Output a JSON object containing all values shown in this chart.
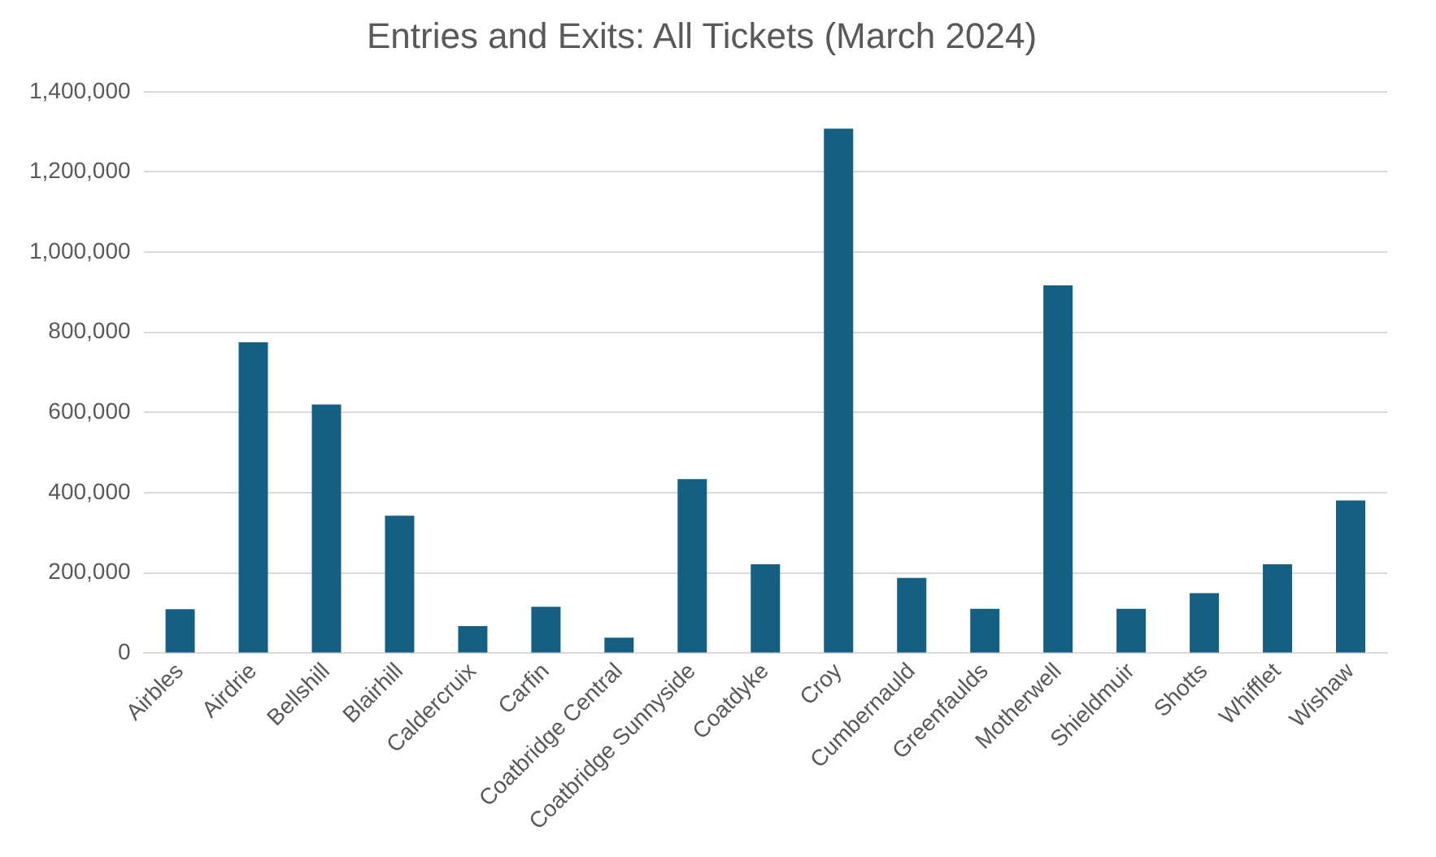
{
  "chart_data": {
    "type": "bar",
    "title": "Entries and Exits: All Tickets (March 2024)",
    "categories": [
      "Airbles",
      "Airdrie",
      "Bellshill",
      "Blairhill",
      "Caldercruix",
      "Carfin",
      "Coatbridge Central",
      "Coatbridge Sunnyside",
      "Coatdyke",
      "Croy",
      "Cumbernauld",
      "Greenfaulds",
      "Motherwell",
      "Shieldmuir",
      "Shotts",
      "Whifflet",
      "Wishaw"
    ],
    "values": [
      110000,
      775000,
      620000,
      343000,
      68000,
      116000,
      39000,
      434000,
      222000,
      1308000,
      188000,
      111000,
      917000,
      111000,
      150000,
      222000,
      381000
    ],
    "color": "#156082",
    "ylim": [
      0,
      1400000
    ],
    "yticks": [
      0,
      {
        "value": 200000,
        "label": "200,000"
      },
      {
        "value": 400000,
        "label": "400,000"
      },
      {
        "value": 600000,
        "label": "600,000"
      },
      {
        "value": 800000,
        "label": "800,000"
      },
      {
        "value": 1000000,
        "label": "1,000,000"
      },
      {
        "value": 1200000,
        "label": "1,200,000"
      },
      {
        "value": 1400000,
        "label": "1,400,000"
      }
    ],
    "grid": "y",
    "legend": false
  }
}
